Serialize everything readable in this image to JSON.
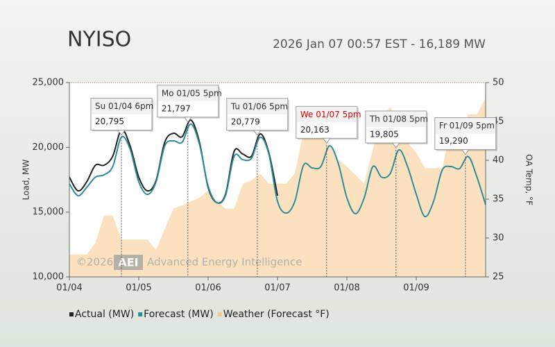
{
  "chart_data": {
    "type": "line",
    "title": "NYISO",
    "subtitle": "2026 Jan 07 00:57 EST - 16,189 MW",
    "y_label": "Load, MW",
    "y2_label": "OA Temp, °F",
    "x": [
      "01/04 00:00",
      "01/04 03:00",
      "01/04 06:00",
      "01/04 09:00",
      "01/04 12:00",
      "01/04 15:00",
      "01/04 18:00",
      "01/04 21:00",
      "01/05 00:00",
      "01/05 03:00",
      "01/05 06:00",
      "01/05 09:00",
      "01/05 12:00",
      "01/05 15:00",
      "01/05 18:00",
      "01/05 21:00",
      "01/06 00:00",
      "01/06 03:00",
      "01/06 06:00",
      "01/06 09:00",
      "01/06 12:00",
      "01/06 15:00",
      "01/06 18:00",
      "01/06 21:00",
      "01/07 00:00",
      "01/07 03:00",
      "01/07 06:00",
      "01/07 09:00",
      "01/07 12:00",
      "01/07 15:00",
      "01/07 18:00",
      "01/07 21:00",
      "01/08 00:00",
      "01/08 03:00",
      "01/08 06:00",
      "01/08 09:00",
      "01/08 12:00",
      "01/08 15:00",
      "01/08 18:00",
      "01/08 21:00",
      "01/09 00:00",
      "01/09 03:00",
      "01/09 06:00",
      "01/09 09:00",
      "01/09 12:00",
      "01/09 15:00",
      "01/09 18:00",
      "01/09 21:00",
      "01/10 00:00"
    ],
    "xlim": [
      "01/04 00:00",
      "01/10 00:00"
    ],
    "xticks": [
      "01/04",
      "01/05",
      "01/06",
      "01/07",
      "01/08",
      "01/09"
    ],
    "ylim": [
      10000,
      25000
    ],
    "yticks": [
      {
        "value": 10000,
        "label": "10,000"
      },
      {
        "value": 15000,
        "label": "15,000"
      },
      {
        "value": 20000,
        "label": "20,000"
      },
      {
        "value": 25000,
        "label": "25,000"
      }
    ],
    "y2lim": [
      25,
      50
    ],
    "y2ticks": [
      25,
      30,
      35,
      40,
      45,
      50
    ],
    "series": [
      {
        "name": "Weather (Forecast °F)",
        "color": "#f7c98a",
        "axis": "y2",
        "kind": "area",
        "values": [
          27.9,
          27.9,
          27.9,
          29.4,
          32.9,
          32.9,
          29.8,
          29.8,
          29.8,
          29.8,
          28.5,
          31.2,
          33.8,
          34.2,
          34.7,
          35.2,
          36.1,
          34.7,
          33.8,
          33.8,
          37.0,
          37.4,
          38.3,
          37.0,
          37.0,
          37.0,
          38.3,
          43.7,
          45.0,
          43.7,
          41.9,
          40.1,
          39.2,
          38.1,
          37.0,
          41.4,
          45.9,
          46.8,
          45.0,
          42.3,
          41.0,
          39.0,
          39.0,
          39.0,
          44.1,
          44.1,
          45.9,
          45.9,
          48.0
        ]
      },
      {
        "name": "Actual (MW)",
        "color": "#222222",
        "kind": "line",
        "values": [
          17700,
          16640,
          17340,
          18620,
          18620,
          19320,
          21360,
          20120,
          17700,
          16640,
          17450,
          20400,
          21090,
          20820,
          22110,
          20400,
          16910,
          15730,
          16370,
          19700,
          19480,
          19320,
          21040,
          19590,
          16270,
          null,
          null,
          null,
          null,
          null,
          null,
          null,
          null,
          null,
          null,
          null,
          null,
          null,
          null,
          null,
          null,
          null,
          null,
          null,
          null,
          null,
          null,
          null,
          null
        ]
      },
      {
        "name": "Forecast (MW)",
        "color": "#2b8d99",
        "kind": "line",
        "values": [
          17180,
          16270,
          16910,
          17700,
          17880,
          18520,
          20795,
          19860,
          17340,
          16370,
          17340,
          20120,
          20500,
          20390,
          21797,
          20230,
          17020,
          15730,
          16270,
          19320,
          19050,
          19160,
          20779,
          19480,
          15840,
          14930,
          15840,
          18620,
          18410,
          18520,
          20120,
          18780,
          16110,
          14880,
          16110,
          18520,
          17700,
          17980,
          19805,
          18520,
          16380,
          14660,
          15840,
          18250,
          18520,
          18360,
          19290,
          17700,
          15570
        ]
      }
    ],
    "legend_order": [
      1,
      2,
      0
    ],
    "annotations": [
      {
        "label": "Su 01/04 6pm",
        "x": "01/04 18:00",
        "value": 20795,
        "value_label": "20,795",
        "color": "#333333"
      },
      {
        "label": "Mo 01/05 5pm",
        "x": "01/05 17:00",
        "value": 21797,
        "value_label": "21,797",
        "color": "#333333"
      },
      {
        "label": "Tu 01/06 5pm",
        "x": "01/06 17:00",
        "value": 20779,
        "value_label": "20,779",
        "color": "#333333"
      },
      {
        "label": "We 01/07 5pm",
        "x": "01/07 17:00",
        "value": 20163,
        "value_label": "20,163",
        "color": "#dd0000"
      },
      {
        "label": "Th 01/08 5pm",
        "x": "01/08 17:00",
        "value": 19805,
        "value_label": "19,805",
        "color": "#333333"
      },
      {
        "label": "Fr 01/09 5pm",
        "x": "01/09 17:00",
        "value": 19290,
        "value_label": "19,290",
        "color": "#333333"
      }
    ],
    "watermark": {
      "year": "©2026",
      "logo": "AEI",
      "text": "Advanced Energy Intelligence"
    }
  }
}
